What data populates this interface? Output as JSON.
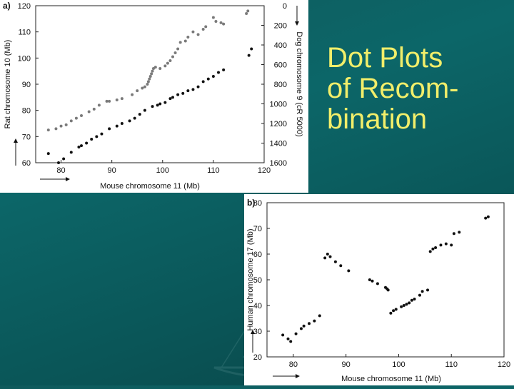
{
  "slide": {
    "title_lines": [
      "Dot Plots",
      "of Recom-",
      "bination"
    ]
  },
  "chart_data": [
    {
      "panel_label": "a)",
      "type": "scatter",
      "xlabel": "Mouse chromosome 11 (Mb)",
      "ylabel": "Rat chromosome 10 (Mb)",
      "y2label": "Dog chromosome 9 (cR 5000)",
      "xlim": [
        75,
        120
      ],
      "ylim": [
        60,
        120
      ],
      "y2lim": [
        0,
        1600
      ],
      "x_ticks": [
        "80",
        "90",
        "100",
        "110",
        "120"
      ],
      "y_ticks": [
        "60",
        "70",
        "80",
        "90",
        "100",
        "110",
        "120"
      ],
      "y2_ticks": [
        "0",
        "200",
        "400",
        "600",
        "800",
        "1000",
        "1200",
        "1400",
        "1600"
      ],
      "series": [
        {
          "color": "#7a7a7a",
          "points": [
            [
              77.5,
              72.5
            ],
            [
              79,
              73
            ],
            [
              80,
              74
            ],
            [
              81,
              74.5
            ],
            [
              82,
              76
            ],
            [
              83,
              77
            ],
            [
              84,
              78
            ],
            [
              85.5,
              79.5
            ],
            [
              86.5,
              80.5
            ],
            [
              87.5,
              82
            ],
            [
              89,
              83.5
            ],
            [
              89.5,
              83.5
            ],
            [
              91,
              84
            ],
            [
              92,
              84.5
            ],
            [
              94,
              86
            ],
            [
              95,
              87.5
            ],
            [
              96,
              88.5
            ],
            [
              96.5,
              89
            ],
            [
              97,
              90
            ],
            [
              97.2,
              91
            ],
            [
              97.4,
              92
            ],
            [
              97.6,
              93
            ],
            [
              97.8,
              94
            ],
            [
              98,
              95
            ],
            [
              98.2,
              96
            ],
            [
              98.6,
              96.5
            ],
            [
              99.5,
              96
            ],
            [
              100.5,
              97
            ],
            [
              101,
              98
            ],
            [
              101.5,
              99
            ],
            [
              102,
              100.5
            ],
            [
              102.5,
              102
            ],
            [
              103,
              103.5
            ],
            [
              103.5,
              106
            ],
            [
              104.5,
              106.5
            ],
            [
              105,
              108
            ],
            [
              106,
              110
            ],
            [
              107,
              109
            ],
            [
              108,
              111
            ],
            [
              108.5,
              112
            ],
            [
              110,
              115.5
            ],
            [
              110.5,
              114
            ],
            [
              111.5,
              113.5
            ],
            [
              112,
              113
            ],
            [
              116.5,
              117
            ],
            [
              116.8,
              118
            ]
          ]
        },
        {
          "color": "#111111",
          "points": [
            [
              77.5,
              63.5
            ],
            [
              79.5,
              60
            ],
            [
              80.5,
              61.5
            ],
            [
              82,
              64
            ],
            [
              83.5,
              66
            ],
            [
              84,
              66.5
            ],
            [
              85,
              67.5
            ],
            [
              86,
              69
            ],
            [
              87,
              70
            ],
            [
              88,
              71
            ],
            [
              89.5,
              73
            ],
            [
              91,
              74
            ],
            [
              92,
              75
            ],
            [
              93.5,
              76
            ],
            [
              94.5,
              77
            ],
            [
              95.5,
              78.5
            ],
            [
              96.5,
              80
            ],
            [
              98,
              81.5
            ],
            [
              99,
              82
            ],
            [
              99.5,
              82.5
            ],
            [
              100.5,
              83
            ],
            [
              101.5,
              84.5
            ],
            [
              102,
              85
            ],
            [
              103,
              86
            ],
            [
              104,
              86.5
            ],
            [
              105,
              87.5
            ],
            [
              106,
              88
            ],
            [
              107,
              89
            ],
            [
              108,
              91
            ],
            [
              109,
              92
            ],
            [
              110,
              93
            ],
            [
              111,
              94.5
            ],
            [
              112,
              95.5
            ],
            [
              117,
              101
            ],
            [
              117.5,
              103.5
            ]
          ]
        }
      ]
    },
    {
      "panel_label": "b)",
      "type": "scatter",
      "xlabel": "Mouse chromosome 11 (Mb)",
      "ylabel": "Human chromosome 17 (Mb)",
      "xlim": [
        75,
        120
      ],
      "ylim": [
        20,
        80
      ],
      "x_ticks": [
        "80",
        "90",
        "100",
        "110",
        "120"
      ],
      "y_ticks": [
        "20",
        "30",
        "40",
        "50",
        "60",
        "70",
        "80"
      ],
      "series": [
        {
          "color": "#111111",
          "points": [
            [
              78,
              28.5
            ],
            [
              79,
              27
            ],
            [
              79.5,
              26
            ],
            [
              80.5,
              29
            ],
            [
              81.5,
              31
            ],
            [
              82,
              32
            ],
            [
              83,
              33
            ],
            [
              84,
              34
            ],
            [
              85,
              36
            ],
            [
              86,
              58.5
            ],
            [
              86.5,
              60
            ],
            [
              87,
              59
            ],
            [
              88,
              57
            ],
            [
              89,
              55.5
            ],
            [
              90.5,
              53.5
            ],
            [
              94.5,
              50
            ],
            [
              95,
              49.5
            ],
            [
              96,
              48.5
            ],
            [
              97.5,
              47
            ],
            [
              97.8,
              46.5
            ],
            [
              98,
              46
            ],
            [
              98.5,
              37
            ],
            [
              99,
              38
            ],
            [
              99.5,
              38.5
            ],
            [
              100.5,
              39.5
            ],
            [
              101,
              40
            ],
            [
              101.5,
              40.5
            ],
            [
              102,
              41
            ],
            [
              102.5,
              42
            ],
            [
              103,
              42.5
            ],
            [
              104,
              44
            ],
            [
              104.5,
              45.5
            ],
            [
              105.5,
              46
            ],
            [
              106,
              61
            ],
            [
              106.5,
              62
            ],
            [
              107,
              62.5
            ],
            [
              108,
              63.5
            ],
            [
              109,
              64
            ],
            [
              110,
              63.5
            ],
            [
              110.5,
              68
            ],
            [
              111.5,
              68.5
            ],
            [
              116.5,
              74
            ],
            [
              117,
              74.5
            ]
          ]
        }
      ]
    }
  ]
}
